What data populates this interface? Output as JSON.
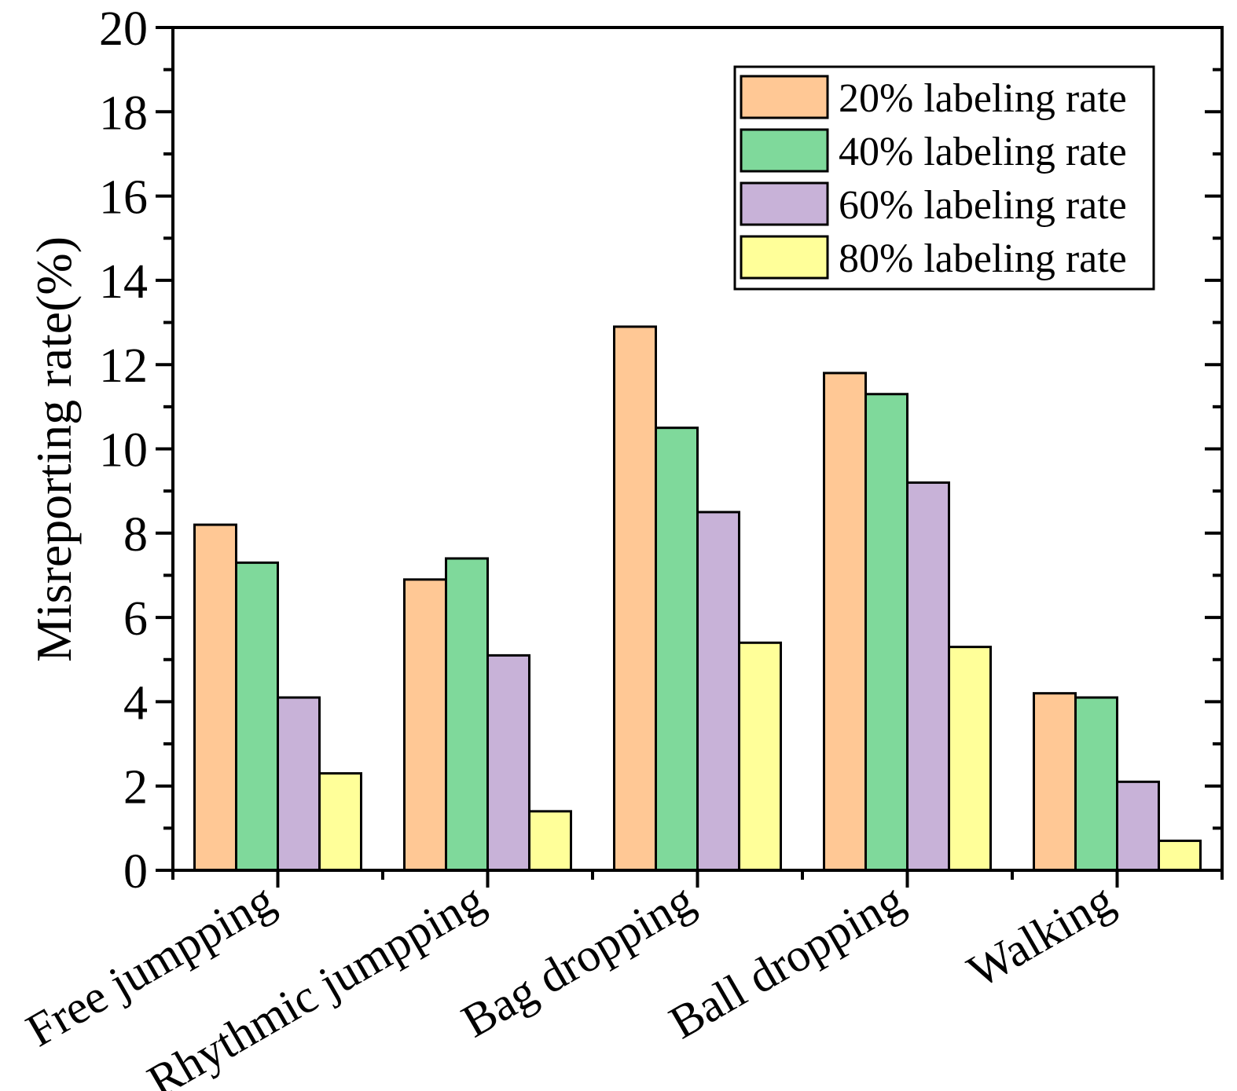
{
  "chart_data": {
    "type": "bar",
    "title": "",
    "xlabel": "",
    "ylabel": "Misreporting  rate(%)",
    "ylim": [
      0,
      20
    ],
    "yticks": [
      "0",
      "2",
      "4",
      "6",
      "8",
      "10",
      "12",
      "14",
      "16",
      "18",
      "20"
    ],
    "grid": false,
    "legend_position": "top-right",
    "categories": [
      "Free jumpping",
      "Rhythmic jumpping",
      "Bag dropping",
      "Ball dropping",
      "Walking"
    ],
    "series": [
      {
        "name": "20% labeling rate",
        "color": "#FFC895",
        "values": [
          8.2,
          6.9,
          12.9,
          11.8,
          4.2
        ]
      },
      {
        "name": "40% labeling rate",
        "color": "#7FD99B",
        "values": [
          7.3,
          7.4,
          10.5,
          11.3,
          4.1
        ]
      },
      {
        "name": "60% labeling rate",
        "color": "#C8B2D8",
        "values": [
          4.1,
          5.1,
          8.5,
          9.2,
          2.1
        ]
      },
      {
        "name": "80% labeling rate",
        "color": "#FFFF99",
        "values": [
          2.3,
          1.4,
          5.4,
          5.3,
          0.7
        ]
      }
    ]
  }
}
